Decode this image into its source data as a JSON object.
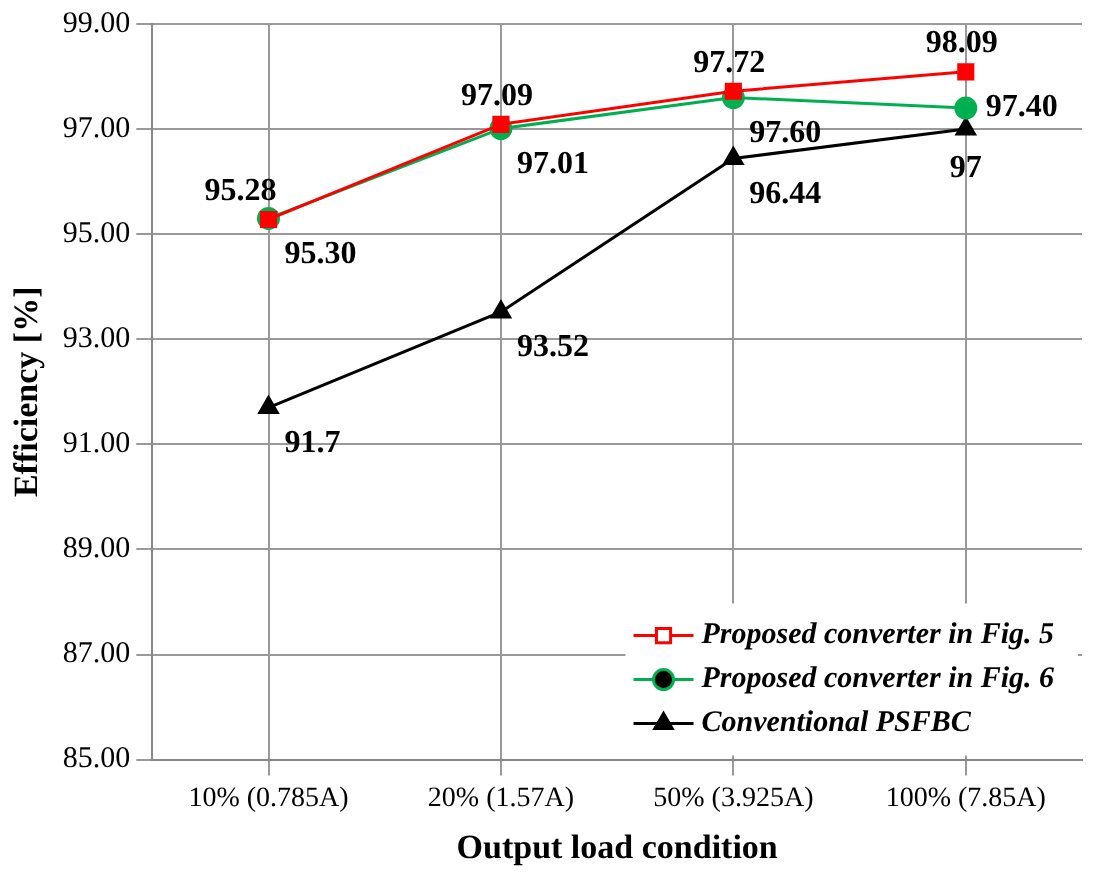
{
  "chart_data": {
    "type": "line",
    "xlabel": "Output load condition",
    "ylabel": "Efficiency [%]",
    "categories": [
      "10% (0.785A)",
      "20% (1.57A)",
      "50% (3.925A)",
      "100% (7.85A)"
    ],
    "series": [
      {
        "name": "Proposed converter in Fig. 5",
        "color": "#ff0000",
        "marker": "square",
        "values": [
          95.28,
          97.09,
          97.72,
          98.09
        ],
        "value_labels": [
          "95.28",
          "97.09",
          "97.72",
          "98.09"
        ]
      },
      {
        "name": "Proposed converter in Fig. 6",
        "color": "#00b050",
        "marker": "circle",
        "values": [
          95.3,
          97.01,
          97.6,
          97.4
        ],
        "value_labels": [
          "95.30",
          "97.01",
          "97.60",
          "97.40"
        ]
      },
      {
        "name": "Conventional PSFBC",
        "color": "#000000",
        "marker": "triangle",
        "values": [
          91.7,
          93.52,
          96.44,
          97
        ],
        "value_labels": [
          "91.7",
          "93.52",
          "96.44",
          "97"
        ]
      }
    ],
    "ylim": [
      85,
      99
    ],
    "yticks": [
      {
        "value": 85,
        "label": "85.00"
      },
      {
        "value": 87,
        "label": "87.00"
      },
      {
        "value": 89,
        "label": "89.00"
      },
      {
        "value": 91,
        "label": "91.00"
      },
      {
        "value": 93,
        "label": "93.00"
      },
      {
        "value": 95,
        "label": "95.00"
      },
      {
        "value": 97,
        "label": "97.00"
      },
      {
        "value": 99,
        "label": "99.00"
      }
    ],
    "grid": true,
    "legend": "bottom right",
    "line_style": "solid"
  }
}
